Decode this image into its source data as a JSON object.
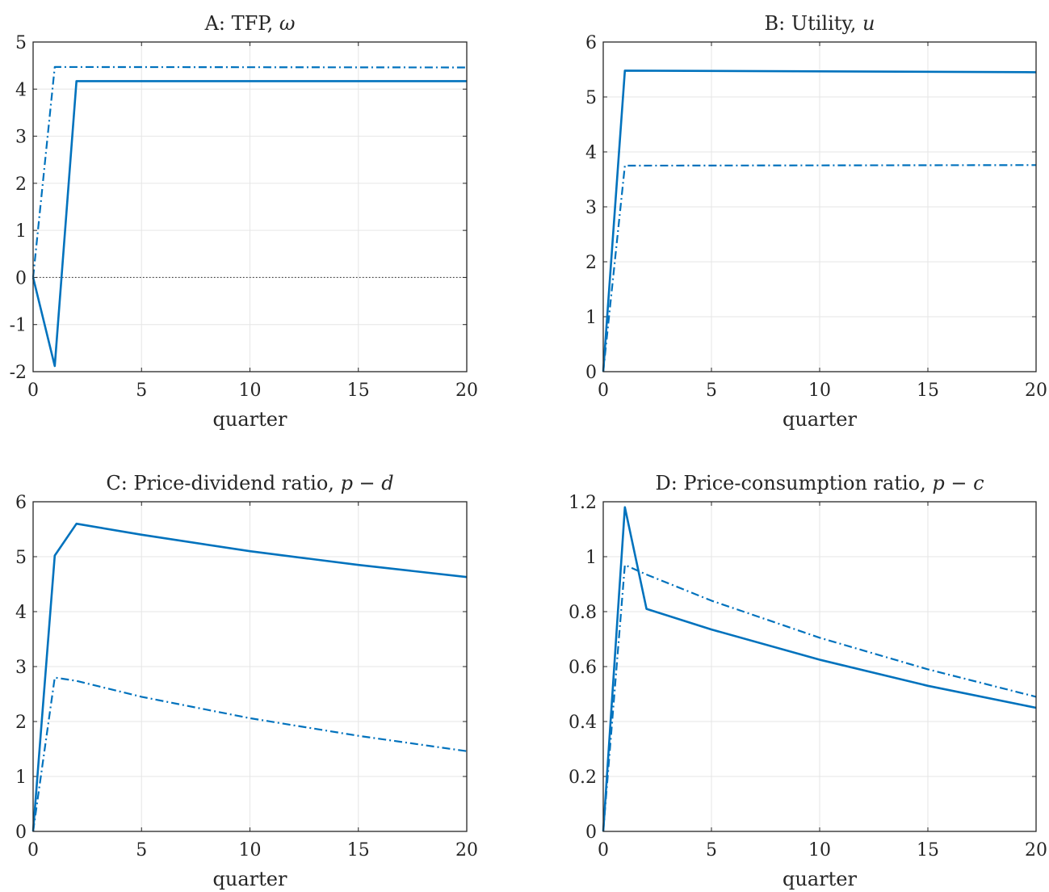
{
  "chart_data": [
    {
      "type": "line",
      "title": "A: TFP, ",
      "title_math": "ω",
      "xlabel": "quarter",
      "xlim": [
        0,
        20
      ],
      "ylim": [
        -2,
        5
      ],
      "xticks": [
        0,
        5,
        10,
        15,
        20
      ],
      "xtick_labels": [
        "0",
        "5",
        "10",
        "15",
        "20"
      ],
      "yticks": [
        -2,
        -1,
        0,
        1,
        2,
        3,
        4,
        5
      ],
      "ytick_labels": [
        "-2",
        "-1",
        "0",
        "1",
        "2",
        "3",
        "4",
        "5"
      ],
      "grid": true,
      "zero_line": true,
      "series": [
        {
          "style": "solid",
          "x": [
            0,
            1,
            2,
            20
          ],
          "y": [
            0,
            -1.88,
            4.17,
            4.17
          ]
        },
        {
          "style": "dashdot",
          "x": [
            0,
            1,
            20
          ],
          "y": [
            0,
            4.47,
            4.46
          ]
        }
      ]
    },
    {
      "type": "line",
      "title": "B: Utility, ",
      "title_math": "u",
      "xlabel": "quarter",
      "xlim": [
        0,
        20
      ],
      "ylim": [
        0,
        6
      ],
      "xticks": [
        0,
        5,
        10,
        15,
        20
      ],
      "xtick_labels": [
        "0",
        "5",
        "10",
        "15",
        "20"
      ],
      "yticks": [
        0,
        1,
        2,
        3,
        4,
        5,
        6
      ],
      "ytick_labels": [
        "0",
        "1",
        "2",
        "3",
        "4",
        "5",
        "6"
      ],
      "grid": true,
      "zero_line": true,
      "series": [
        {
          "style": "solid",
          "x": [
            0,
            1,
            20
          ],
          "y": [
            0,
            5.48,
            5.45
          ]
        },
        {
          "style": "dashdot",
          "x": [
            0,
            1,
            20
          ],
          "y": [
            0,
            3.75,
            3.76
          ]
        }
      ]
    },
    {
      "type": "line",
      "title": "C: Price-dividend ratio, ",
      "title_math": "p − d",
      "xlabel": "quarter",
      "xlim": [
        0,
        20
      ],
      "ylim": [
        0,
        6
      ],
      "xticks": [
        0,
        5,
        10,
        15,
        20
      ],
      "xtick_labels": [
        "0",
        "5",
        "10",
        "15",
        "20"
      ],
      "yticks": [
        0,
        1,
        2,
        3,
        4,
        5,
        6
      ],
      "ytick_labels": [
        "0",
        "1",
        "2",
        "3",
        "4",
        "5",
        "6"
      ],
      "grid": true,
      "zero_line": true,
      "series": [
        {
          "style": "solid",
          "x": [
            0,
            1,
            2,
            5,
            10,
            15,
            20
          ],
          "y": [
            0,
            5.02,
            5.6,
            5.4,
            5.1,
            4.85,
            4.63
          ]
        },
        {
          "style": "dashdot",
          "x": [
            0,
            1,
            2,
            5,
            10,
            15,
            20
          ],
          "y": [
            0,
            2.8,
            2.74,
            2.45,
            2.06,
            1.74,
            1.46
          ]
        }
      ]
    },
    {
      "type": "line",
      "title": "D: Price-consumption ratio, ",
      "title_math": "p − c",
      "xlabel": "quarter",
      "xlim": [
        0,
        20
      ],
      "ylim": [
        0,
        1.2
      ],
      "xticks": [
        0,
        5,
        10,
        15,
        20
      ],
      "xtick_labels": [
        "0",
        "5",
        "10",
        "15",
        "20"
      ],
      "yticks": [
        0,
        0.2,
        0.4,
        0.6,
        0.8,
        1,
        1.2
      ],
      "ytick_labels": [
        "0",
        "0.2",
        "0.4",
        "0.6",
        "0.8",
        "1",
        "1.2"
      ],
      "grid": true,
      "zero_line": true,
      "series": [
        {
          "style": "solid",
          "x": [
            0,
            1,
            2,
            5,
            10,
            15,
            20
          ],
          "y": [
            0,
            1.18,
            0.81,
            0.735,
            0.625,
            0.53,
            0.45
          ]
        },
        {
          "style": "dashdot",
          "x": [
            0,
            1,
            2,
            5,
            10,
            15,
            20
          ],
          "y": [
            0,
            0.97,
            0.935,
            0.84,
            0.705,
            0.59,
            0.49
          ]
        }
      ]
    }
  ]
}
